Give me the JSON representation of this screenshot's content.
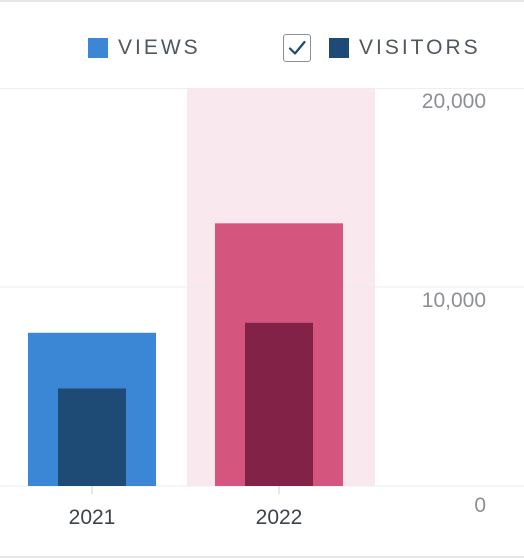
{
  "legend": {
    "items": [
      {
        "label": "VIEWS",
        "color": "#3c86d6"
      },
      {
        "label": "VISITORS",
        "color": "#1e4a76",
        "checked": true
      }
    ]
  },
  "chart_data": {
    "type": "bar",
    "categories": [
      "2021",
      "2022"
    ],
    "series": [
      {
        "name": "VIEWS",
        "values": [
          7700,
          13200
        ]
      },
      {
        "name": "VISITORS",
        "values": [
          4900,
          8200
        ]
      }
    ],
    "highlighted_category": "2022",
    "highlight_colors": {
      "band": "#f9e8ee",
      "views": "#d4567e",
      "visitors": "#812246"
    },
    "series_colors": {
      "views": "#3c86d6",
      "visitors": "#1e4a76"
    },
    "y_ticks": [
      "0",
      "10,000",
      "20,000"
    ],
    "y_tick_values": [
      0,
      10000,
      20000
    ],
    "ylim": [
      0,
      20000
    ],
    "y_axis_position": "right",
    "grid": true
  }
}
